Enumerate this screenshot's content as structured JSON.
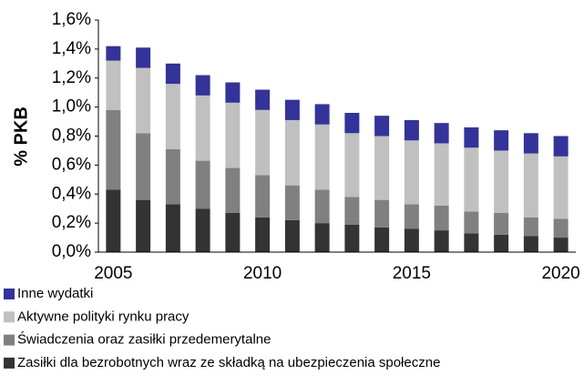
{
  "chart_data": {
    "type": "stacked_bar",
    "y_label": "% PKB",
    "categories": [
      "2005",
      null,
      null,
      null,
      null,
      "2010",
      null,
      null,
      null,
      null,
      "2015",
      null,
      null,
      null,
      null,
      "2020"
    ],
    "series": [
      {
        "name": "Zasiłki dla bezrobotnych wraz ze składką na ubezpieczenia społeczne",
        "color": "#333333",
        "values": [
          0.43,
          0.36,
          0.33,
          0.3,
          0.27,
          0.24,
          0.22,
          0.2,
          0.19,
          0.17,
          0.16,
          0.15,
          0.13,
          0.12,
          0.11,
          0.1
        ]
      },
      {
        "name": "Świadczenia oraz zasiłki przedemerytalne",
        "color": "#808080",
        "values": [
          0.55,
          0.46,
          0.38,
          0.33,
          0.31,
          0.29,
          0.24,
          0.23,
          0.19,
          0.19,
          0.17,
          0.17,
          0.15,
          0.15,
          0.13,
          0.13
        ]
      },
      {
        "name": "Aktywne polityki rynku pracy",
        "color": "#c0c0c0",
        "values": [
          0.34,
          0.45,
          0.45,
          0.45,
          0.45,
          0.45,
          0.45,
          0.45,
          0.44,
          0.44,
          0.44,
          0.43,
          0.44,
          0.43,
          0.44,
          0.43
        ]
      },
      {
        "name": "Inne wydatki",
        "color": "#333399",
        "values": [
          0.1,
          0.14,
          0.14,
          0.14,
          0.14,
          0.14,
          0.14,
          0.14,
          0.14,
          0.14,
          0.14,
          0.14,
          0.14,
          0.14,
          0.14,
          0.14
        ]
      }
    ],
    "ylim": [
      0,
      1.6
    ],
    "yticks": [
      {
        "value": 0,
        "label": "0,0%"
      },
      {
        "value": 0.2,
        "label": "0,2%"
      },
      {
        "value": 0.4,
        "label": "0,4%"
      },
      {
        "value": 0.6,
        "label": "0,6%"
      },
      {
        "value": 0.8,
        "label": "0,8%"
      },
      {
        "value": 1.0,
        "label": "1,0%"
      },
      {
        "value": 1.2,
        "label": "1,2%"
      },
      {
        "value": 1.4,
        "label": "1,4%"
      },
      {
        "value": 1.6,
        "label": "1,6%"
      }
    ],
    "legend": "bottom-left",
    "legend_order": "reverse",
    "grid": false
  }
}
